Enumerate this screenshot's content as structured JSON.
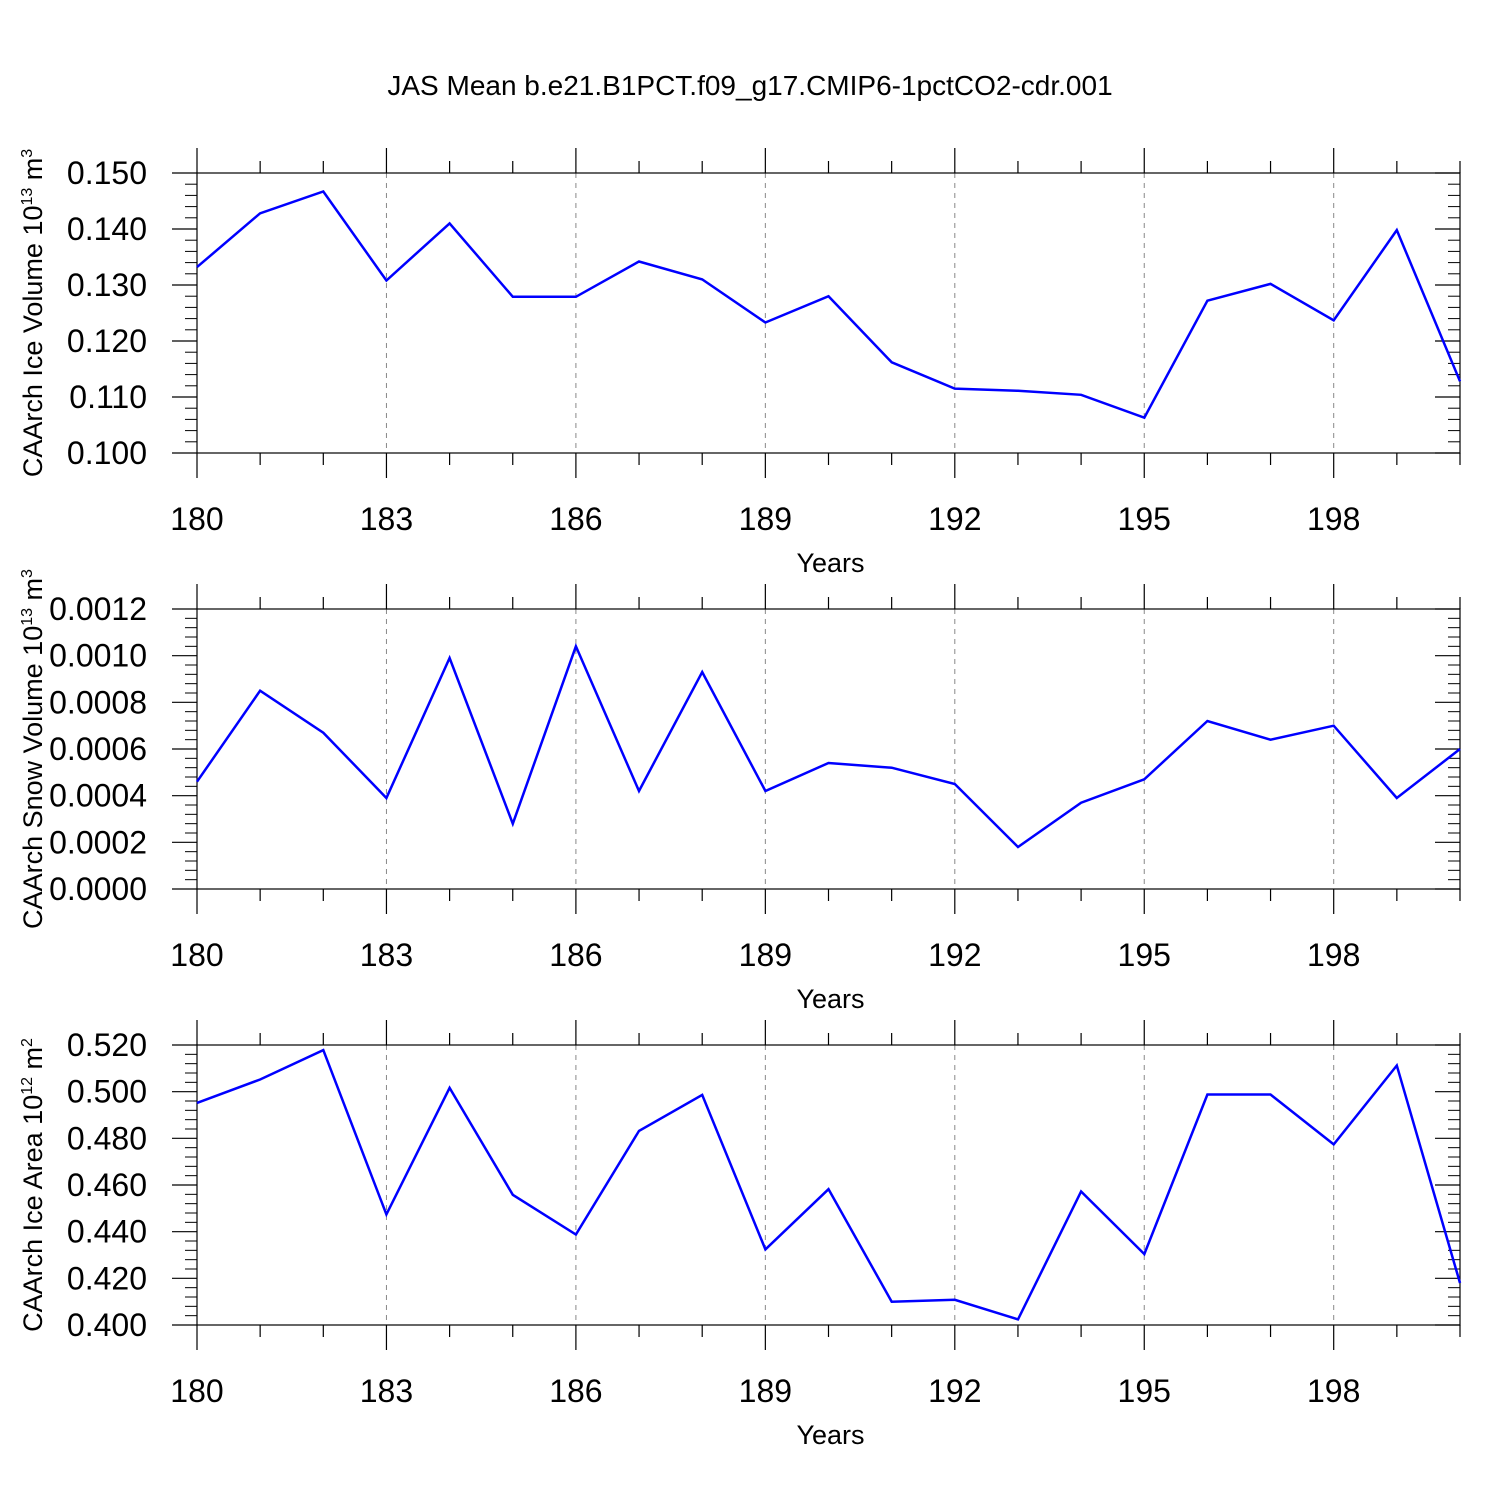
{
  "title": "JAS Mean b.e21.B1PCT.f09_g17.CMIP6-1pctCO2-cdr.001",
  "colors": {
    "line": "#0000ff",
    "axis": "#000000",
    "grid": "#888888"
  },
  "chart_data": [
    {
      "type": "line",
      "xlabel": "Years",
      "ylabel_text": "CAArch Ice Volume 10",
      "ylabel_exp": "13",
      "ylabel_unit": "m",
      "ylabel_unit_exp": "3",
      "xlim": [
        180,
        200
      ],
      "ylim": [
        0.1,
        0.15
      ],
      "xticks": [
        "180",
        "183",
        "186",
        "189",
        "192",
        "195",
        "198"
      ],
      "yticks": [
        "0.100",
        "0.110",
        "0.120",
        "0.130",
        "0.140",
        "0.150"
      ],
      "grid": "vertical dashed at major x ticks",
      "x": [
        180,
        181,
        182,
        183,
        184,
        185,
        186,
        187,
        188,
        189,
        190,
        191,
        192,
        193,
        194,
        195,
        196,
        197,
        198,
        199,
        200
      ],
      "series": [
        {
          "values": [
            0.1332,
            0.1428,
            0.1467,
            0.1308,
            0.141,
            0.1279,
            0.1279,
            0.1342,
            0.131,
            0.1233,
            0.128,
            0.1162,
            0.1115,
            0.1111,
            0.1104,
            0.1063,
            0.1272,
            0.1302,
            0.1237,
            0.1398,
            0.1128
          ]
        }
      ]
    },
    {
      "type": "line",
      "xlabel": "Years",
      "ylabel_text": "CAArch Snow Volume 10",
      "ylabel_exp": "13",
      "ylabel_unit": "m",
      "ylabel_unit_exp": "3",
      "xlim": [
        180,
        200
      ],
      "ylim": [
        0.0,
        0.0012
      ],
      "xticks": [
        "180",
        "183",
        "186",
        "189",
        "192",
        "195",
        "198"
      ],
      "yticks": [
        "0.0000",
        "0.0002",
        "0.0004",
        "0.0006",
        "0.0008",
        "0.0010",
        "0.0012"
      ],
      "grid": "vertical dashed at major x ticks",
      "x": [
        180,
        181,
        182,
        183,
        184,
        185,
        186,
        187,
        188,
        189,
        190,
        191,
        192,
        193,
        194,
        195,
        196,
        197,
        198,
        199,
        200
      ],
      "series": [
        {
          "values": [
            0.00046,
            0.00085,
            0.00067,
            0.00039,
            0.00099,
            0.00028,
            0.00104,
            0.00042,
            0.00093,
            0.00042,
            0.00054,
            0.00052,
            0.00045,
            0.00018,
            0.00037,
            0.00047,
            0.00072,
            0.00064,
            0.0007,
            0.00039,
            0.0006
          ]
        }
      ]
    },
    {
      "type": "line",
      "xlabel": "Years",
      "ylabel_text": "CAArch Ice Area 10",
      "ylabel_exp": "12",
      "ylabel_unit": "m",
      "ylabel_unit_exp": "2",
      "xlim": [
        180,
        200
      ],
      "ylim": [
        0.4,
        0.52
      ],
      "xticks": [
        "180",
        "183",
        "186",
        "189",
        "192",
        "195",
        "198"
      ],
      "yticks": [
        "0.400",
        "0.420",
        "0.440",
        "0.460",
        "0.480",
        "0.500",
        "0.520"
      ],
      "grid": "vertical dashed at major x ticks",
      "x": [
        180,
        181,
        182,
        183,
        184,
        185,
        186,
        187,
        188,
        189,
        190,
        191,
        192,
        193,
        194,
        195,
        196,
        197,
        198,
        199,
        200
      ],
      "series": [
        {
          "values": [
            0.4952,
            0.5052,
            0.5178,
            0.4474,
            0.5016,
            0.4558,
            0.4388,
            0.4832,
            0.4986,
            0.4324,
            0.4582,
            0.41,
            0.4108,
            0.4024,
            0.4572,
            0.4304,
            0.4988,
            0.4988,
            0.4774,
            0.5112,
            0.418
          ]
        }
      ]
    }
  ]
}
